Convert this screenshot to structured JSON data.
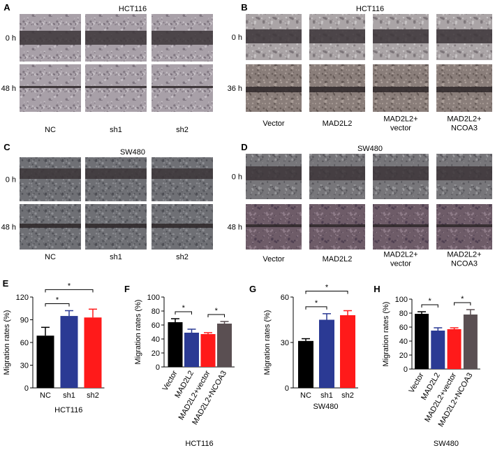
{
  "panels": [
    {
      "letter": "A",
      "title": "HCT116",
      "rows": [
        "0 h",
        "48 h"
      ],
      "columns": [
        [
          "NC"
        ],
        [
          "sh1"
        ],
        [
          "sh2"
        ]
      ]
    },
    {
      "letter": "B",
      "title": "HCT116",
      "rows": [
        "0 h",
        "36 h"
      ],
      "columns": [
        [
          "Vector"
        ],
        [
          "MAD2L2"
        ],
        [
          "MAD2L2+",
          "vector"
        ],
        [
          "MAD2L2+",
          "NCOA3"
        ]
      ]
    },
    {
      "letter": "C",
      "title": "SW480",
      "rows": [
        "0 h",
        "48 h"
      ],
      "columns": [
        [
          "NC"
        ],
        [
          "sh1"
        ],
        [
          "sh2"
        ]
      ]
    },
    {
      "letter": "D",
      "title": "SW480",
      "rows": [
        "0 h",
        "48 h"
      ],
      "columns": [
        [
          "Vector"
        ],
        [
          "MAD2L2"
        ],
        [
          "MAD2L2+",
          "vector"
        ],
        [
          "MAD2L2+",
          "NCOA3"
        ]
      ]
    }
  ],
  "chart_data": [
    {
      "type": "bar",
      "panel": "E",
      "ylabel": "Migration rates (%)",
      "xlabel": "HCT116",
      "categories": [
        "NC",
        "sh1",
        "sh2"
      ],
      "values": [
        69,
        95,
        93
      ],
      "errors": [
        11,
        7,
        11
      ],
      "colors": [
        "#000000",
        "#2b3a94",
        "#ff1a1a"
      ],
      "ylim": [
        0,
        120
      ],
      "yticks": [
        0,
        30,
        60,
        90,
        120
      ],
      "brackets": [
        {
          "label": "*",
          "between": [
            "NC",
            "sh1"
          ]
        },
        {
          "label": "*",
          "between": [
            "NC",
            "sh2"
          ]
        }
      ]
    },
    {
      "type": "bar",
      "panel": "F",
      "ylabel": "Migration rates (%)",
      "xlabel": "HCT116",
      "categories": [
        "Vector",
        "MAD2L2",
        "MAD2L2+vector",
        "MAD2L2+NCOA3"
      ],
      "values": [
        64,
        49,
        47,
        62
      ],
      "errors": [
        5,
        5,
        2,
        3
      ],
      "colors": [
        "#000000",
        "#2b3a94",
        "#ff1a1a",
        "#5a4f52"
      ],
      "ylim": [
        0,
        100
      ],
      "yticks": [
        0,
        20,
        40,
        60,
        80,
        100
      ],
      "brackets": [
        {
          "label": "*",
          "between": [
            "Vector",
            "MAD2L2"
          ]
        },
        {
          "label": "*",
          "between": [
            "MAD2L2+vector",
            "MAD2L2+NCOA3"
          ]
        }
      ]
    },
    {
      "type": "bar",
      "panel": "G",
      "ylabel": "Migration rates (%)",
      "xlabel": "SW480",
      "categories": [
        "NC",
        "sh1",
        "sh2"
      ],
      "values": [
        31,
        45,
        48
      ],
      "errors": [
        1.5,
        4,
        3
      ],
      "colors": [
        "#000000",
        "#2b3a94",
        "#ff1a1a"
      ],
      "ylim": [
        0,
        60
      ],
      "yticks": [
        0,
        30,
        60
      ],
      "brackets": [
        {
          "label": "*",
          "between": [
            "NC",
            "sh1"
          ]
        },
        {
          "label": "*",
          "between": [
            "NC",
            "sh2"
          ]
        }
      ]
    },
    {
      "type": "bar",
      "panel": "H",
      "ylabel": "Migration rates (%)",
      "xlabel": "SW480",
      "categories": [
        "Vector",
        "MAD2L2",
        "MAD2L2+vector",
        "MAD2L2+NCOA3"
      ],
      "values": [
        79,
        55,
        57,
        78
      ],
      "errors": [
        3,
        4,
        2,
        7
      ],
      "colors": [
        "#000000",
        "#2b3a94",
        "#ff1a1a",
        "#5a4f52"
      ],
      "ylim": [
        0,
        100
      ],
      "yticks": [
        0,
        20,
        40,
        60,
        80,
        100
      ],
      "brackets": [
        {
          "label": "*",
          "between": [
            "Vector",
            "MAD2L2"
          ]
        },
        {
          "label": "*",
          "between": [
            "MAD2L2+vector",
            "MAD2L2+NCOA3"
          ]
        }
      ]
    }
  ]
}
